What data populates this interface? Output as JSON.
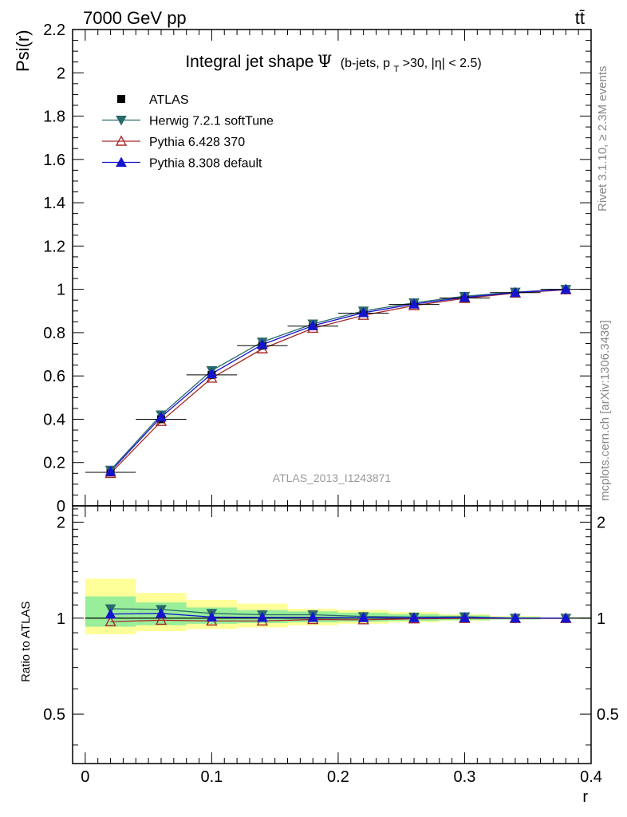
{
  "header": {
    "left": "7000 GeV pp",
    "right": "tt̄"
  },
  "side_labels": {
    "rivet": "Rivet 3.1.10, ≥ 2.3M events",
    "mcplots": "mcplots.cern.ch [arXiv:1306.3436]"
  },
  "chart_data": {
    "type": "line",
    "title": "Integral jet shape Ψ (b-jets, p_T>30, |η| < 2.5)",
    "title_main": "Integral jet shape",
    "title_psi": "Ψ",
    "title_detail_prefix": "(b-jets, p",
    "title_detail_sub": "T",
    "title_detail_suffix": ">30, |η| < 2.5)",
    "watermark": "ATLAS_2013_I1243871",
    "xlabel": "r",
    "ylabel": "Psi(r)",
    "ratio_ylabel": "Ratio to ATLAS",
    "xlim": [
      -0.01,
      0.4
    ],
    "ylim": [
      0,
      2.2
    ],
    "ratio_ylim": [
      0.35,
      2.25
    ],
    "x_ticks": [
      "0",
      "0.1",
      "0.2",
      "0.3",
      "0.4"
    ],
    "y_ticks": [
      "0",
      "0.2",
      "0.4",
      "0.6",
      "0.8",
      "1",
      "1.2",
      "1.4",
      "1.6",
      "1.8",
      "2",
      "2.2"
    ],
    "ratio_ticks": [
      "0.5",
      "1",
      "2"
    ],
    "x": [
      0.02,
      0.06,
      0.1,
      0.14,
      0.18,
      0.22,
      0.26,
      0.3,
      0.34,
      0.38
    ],
    "bin_edges": [
      0.0,
      0.04,
      0.08,
      0.12,
      0.16,
      0.2,
      0.24,
      0.28,
      0.32,
      0.36,
      0.4
    ],
    "band_inner": [
      [
        0.94,
        1.17
      ],
      [
        0.95,
        1.12
      ],
      [
        0.96,
        1.08
      ],
      [
        0.965,
        1.06
      ],
      [
        0.97,
        1.05
      ],
      [
        0.975,
        1.04
      ],
      [
        0.98,
        1.03
      ],
      [
        0.985,
        1.02
      ],
      [
        0.99,
        1.01
      ],
      [
        0.995,
        1.005
      ]
    ],
    "band_outer": [
      [
        0.89,
        1.33
      ],
      [
        0.91,
        1.2
      ],
      [
        0.925,
        1.14
      ],
      [
        0.935,
        1.11
      ],
      [
        0.95,
        1.07
      ],
      [
        0.96,
        1.06
      ],
      [
        0.97,
        1.045
      ],
      [
        0.98,
        1.03
      ],
      [
        0.99,
        1.015
      ],
      [
        0.995,
        1.005
      ]
    ],
    "series": [
      {
        "name": "ATLAS",
        "color": "#000000",
        "marker": "square",
        "values": [
          0.155,
          0.4,
          0.605,
          0.74,
          0.83,
          0.89,
          0.93,
          0.96,
          0.985,
          1.0
        ]
      },
      {
        "name": "Herwig 7.2.1 softTune",
        "color": "#2a6a6a",
        "marker": "triangle-down",
        "values": [
          0.165,
          0.42,
          0.625,
          0.757,
          0.84,
          0.9,
          0.938,
          0.968,
          0.987,
          1.0
        ]
      },
      {
        "name": "Pythia 6.428 370",
        "color": "#a52a2a",
        "marker": "triangle-up-open",
        "values": [
          0.15,
          0.39,
          0.59,
          0.725,
          0.82,
          0.88,
          0.925,
          0.958,
          0.983,
          0.998
        ]
      },
      {
        "name": "Pythia 8.308 default",
        "color": "#1515d0",
        "marker": "triangle-up",
        "values": [
          0.159,
          0.41,
          0.61,
          0.745,
          0.832,
          0.892,
          0.932,
          0.963,
          0.985,
          1.0
        ]
      }
    ],
    "ratio_series": [
      {
        "name": "Herwig 7.2.1 softTune",
        "values": [
          1.07,
          1.065,
          1.035,
          1.025,
          1.025,
          1.012,
          1.008,
          1.01,
          1.0,
          1.0
        ]
      },
      {
        "name": "Pythia 6.428 370",
        "values": [
          0.975,
          0.985,
          0.98,
          0.98,
          0.99,
          0.988,
          0.995,
          0.998,
          0.998,
          0.998
        ]
      },
      {
        "name": "Pythia 8.308 default",
        "values": [
          1.03,
          1.035,
          1.008,
          1.005,
          1.005,
          1.003,
          1.002,
          1.003,
          1.0,
          1.0
        ]
      }
    ]
  }
}
